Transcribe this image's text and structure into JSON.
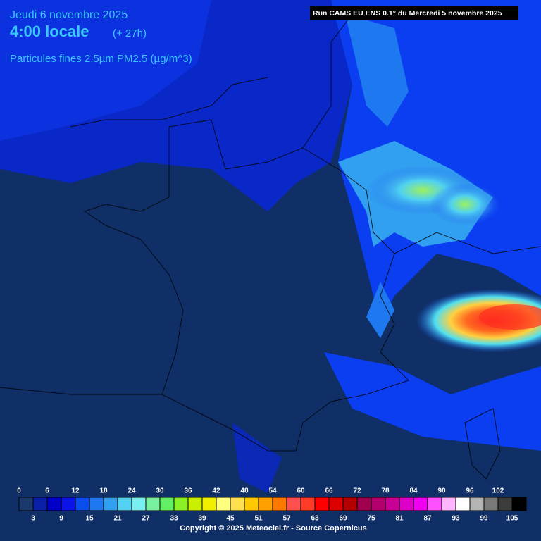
{
  "header": {
    "date": "Jeudi 6 novembre 2025",
    "time": "4:00 locale",
    "lead": "(+ 27h)",
    "variable": "Particules fines 2.5µm PM2.5 (µg/m^3)"
  },
  "run": "Run CAMS EU ENS 0.1° du Mercredi 5 novembre 2025",
  "legend": {
    "top_labels": [
      0,
      6,
      12,
      18,
      24,
      30,
      36,
      42,
      48,
      54,
      60,
      66,
      72,
      78,
      84,
      90,
      96,
      102
    ],
    "bottom_labels": [
      3,
      9,
      15,
      21,
      27,
      33,
      39,
      45,
      51,
      57,
      63,
      69,
      75,
      81,
      87,
      93,
      99,
      105
    ],
    "colors": [
      "#1a3a6e",
      "#0a1fa8",
      "#0000c8",
      "#0a14e6",
      "#0a4ef0",
      "#1e78f0",
      "#32a0f0",
      "#50d2f0",
      "#78f0f0",
      "#78f0a0",
      "#64f064",
      "#8cf028",
      "#c8f000",
      "#f0f000",
      "#ffff80",
      "#ffe050",
      "#ffc800",
      "#ffa000",
      "#ff7800",
      "#ff5050",
      "#ff3c28",
      "#ff0000",
      "#dc0000",
      "#b40000",
      "#a00050",
      "#b4006e",
      "#c80096",
      "#dc00c8",
      "#f000f0",
      "#ff50ff",
      "#ffb4ff",
      "#ffffff",
      "#b4b4b4",
      "#7a7a7a",
      "#3c3c3c",
      "#000000"
    ]
  },
  "footer": "Copyright © 2025 Meteociel.fr - Source Copernicus"
}
